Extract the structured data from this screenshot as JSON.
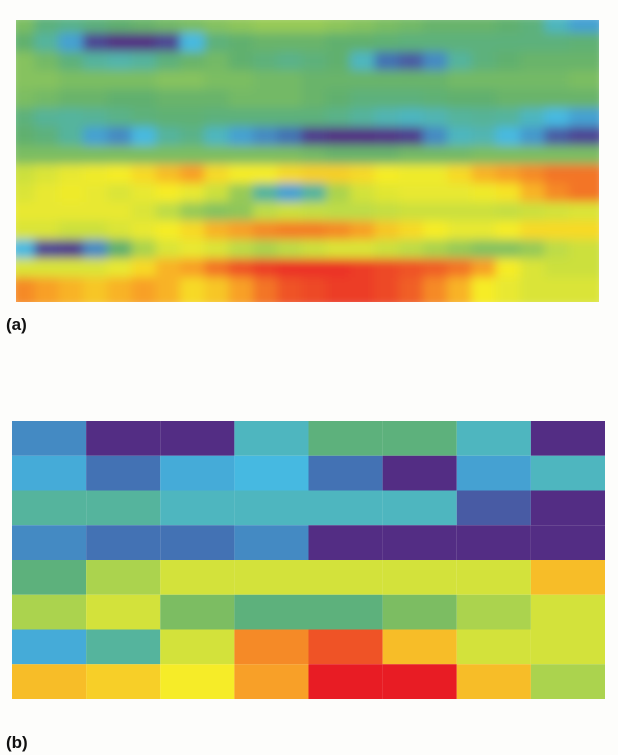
{
  "chart_data": [
    {
      "type": "heatmap",
      "panel_label": "(a)",
      "style": "smooth",
      "rows": 15,
      "cols": 24,
      "values": [
        [
          6.5,
          6.0,
          5.8,
          6.0,
          6.2,
          6.3,
          6.4,
          6.5,
          6.6,
          6.7,
          6.8,
          6.8,
          6.8,
          6.7,
          6.6,
          6.5,
          6.4,
          6.3,
          6.3,
          6.3,
          6.2,
          6.0,
          5.0,
          4.0
        ],
        [
          6.2,
          5.5,
          4.0,
          2.0,
          1.5,
          1.5,
          2.0,
          4.5,
          6.0,
          6.2,
          6.3,
          6.3,
          6.3,
          6.2,
          6.2,
          6.1,
          6.0,
          6.0,
          6.0,
          6.0,
          6.0,
          6.0,
          6.0,
          6.1
        ],
        [
          6.6,
          6.4,
          6.0,
          5.5,
          5.3,
          5.5,
          6.0,
          6.3,
          6.4,
          6.2,
          6.0,
          5.8,
          6.0,
          6.2,
          5.0,
          3.0,
          2.5,
          3.5,
          5.5,
          6.0,
          6.2,
          6.3,
          6.3,
          6.3
        ],
        [
          6.6,
          6.6,
          6.5,
          6.5,
          6.5,
          6.5,
          6.6,
          6.6,
          6.5,
          6.5,
          6.4,
          6.4,
          6.3,
          6.3,
          6.3,
          6.3,
          6.3,
          6.3,
          6.4,
          6.4,
          6.4,
          6.4,
          6.4,
          6.5
        ],
        [
          6.5,
          6.4,
          6.3,
          6.3,
          6.2,
          6.2,
          6.3,
          6.3,
          6.3,
          6.4,
          6.4,
          6.4,
          6.3,
          6.2,
          6.0,
          6.0,
          6.0,
          6.1,
          6.2,
          6.2,
          6.3,
          6.3,
          6.3,
          6.3
        ],
        [
          6.0,
          5.6,
          5.5,
          5.6,
          5.8,
          6.0,
          6.1,
          6.1,
          6.0,
          6.0,
          6.0,
          6.0,
          6.0,
          5.8,
          5.5,
          5.2,
          5.0,
          5.2,
          5.5,
          5.6,
          5.5,
          5.0,
          4.5,
          4.0
        ],
        [
          6.2,
          6.0,
          5.5,
          4.0,
          3.5,
          4.5,
          5.5,
          5.8,
          5.0,
          4.0,
          3.5,
          3.0,
          1.8,
          1.5,
          1.5,
          1.6,
          1.8,
          3.5,
          5.0,
          5.2,
          4.5,
          3.8,
          2.5,
          2.0
        ],
        [
          6.5,
          6.5,
          6.5,
          6.5,
          6.5,
          6.5,
          6.5,
          6.5,
          6.5,
          6.5,
          6.5,
          6.5,
          6.4,
          6.3,
          6.3,
          6.3,
          6.4,
          6.4,
          6.4,
          6.5,
          6.5,
          6.5,
          6.5,
          6.5
        ],
        [
          7.4,
          7.6,
          7.8,
          7.9,
          8.0,
          8.2,
          8.5,
          8.8,
          8.2,
          8.0,
          8.0,
          8.2,
          8.3,
          8.3,
          8.2,
          8.0,
          7.9,
          7.9,
          8.2,
          8.6,
          8.8,
          9.0,
          9.2,
          9.2
        ],
        [
          7.6,
          7.8,
          7.9,
          7.8,
          7.6,
          7.8,
          8.0,
          7.8,
          7.4,
          6.8,
          5.5,
          4.0,
          5.5,
          7.0,
          7.5,
          7.7,
          7.8,
          7.8,
          7.8,
          7.9,
          8.1,
          8.6,
          9.0,
          9.2
        ],
        [
          7.8,
          7.8,
          7.8,
          7.8,
          7.8,
          7.6,
          7.2,
          6.8,
          6.6,
          6.7,
          7.2,
          7.4,
          7.3,
          7.2,
          7.2,
          7.3,
          7.4,
          7.4,
          7.4,
          7.4,
          7.3,
          7.4,
          7.5,
          7.6
        ],
        [
          7.6,
          7.6,
          7.4,
          7.4,
          7.6,
          7.8,
          8.0,
          8.2,
          8.6,
          8.8,
          9.0,
          9.1,
          9.1,
          9.0,
          8.8,
          8.4,
          8.2,
          8.0,
          7.8,
          7.8,
          8.0,
          8.2,
          8.2,
          8.2
        ],
        [
          4.5,
          2.0,
          1.8,
          3.5,
          6.2,
          7.0,
          7.6,
          7.8,
          7.6,
          7.2,
          7.0,
          7.2,
          7.4,
          7.6,
          7.6,
          7.4,
          7.2,
          7.0,
          6.8,
          6.6,
          6.6,
          6.8,
          7.2,
          7.4
        ],
        [
          7.6,
          7.6,
          7.6,
          7.6,
          7.8,
          8.2,
          8.6,
          8.8,
          9.2,
          9.5,
          9.7,
          9.8,
          9.8,
          9.8,
          9.7,
          9.6,
          9.5,
          9.4,
          9.2,
          8.8,
          8.0,
          7.6,
          7.4,
          7.4
        ],
        [
          9.0,
          8.8,
          8.6,
          8.4,
          8.6,
          8.8,
          8.6,
          8.2,
          8.4,
          8.8,
          9.2,
          9.5,
          9.6,
          9.7,
          9.7,
          9.6,
          9.4,
          9.0,
          8.6,
          8.0,
          7.8,
          7.6,
          7.6,
          7.6
        ]
      ]
    },
    {
      "type": "heatmap",
      "panel_label": "(b)",
      "style": "blocky",
      "rows": 8,
      "cols": 8,
      "values": [
        [
          3.5,
          1.5,
          1.5,
          5.0,
          6.0,
          6.0,
          5.0,
          1.5
        ],
        [
          4.2,
          3.0,
          4.2,
          4.5,
          3.0,
          1.5,
          4.0,
          5.0
        ],
        [
          5.5,
          5.5,
          5.0,
          5.0,
          5.0,
          5.0,
          2.5,
          1.5
        ],
        [
          3.5,
          3.0,
          3.0,
          3.5,
          1.5,
          1.5,
          1.5,
          1.5
        ],
        [
          6.0,
          7.0,
          7.5,
          7.5,
          7.5,
          7.5,
          7.5,
          8.5
        ],
        [
          7.0,
          7.5,
          6.5,
          6.0,
          6.0,
          6.5,
          7.0,
          7.5
        ],
        [
          4.2,
          5.5,
          7.5,
          9.0,
          9.5,
          8.5,
          7.5,
          7.5
        ],
        [
          8.5,
          8.3,
          8.0,
          8.8,
          10.0,
          10.0,
          8.5,
          7.0
        ]
      ]
    }
  ]
}
